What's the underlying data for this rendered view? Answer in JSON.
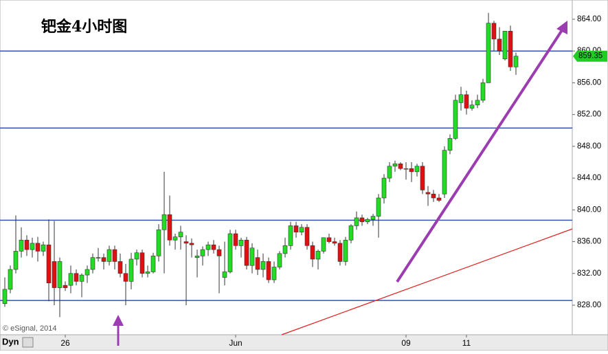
{
  "chart_data": {
    "type": "candlestick",
    "title": "钯金4小时图",
    "watermark": "© eSignal, 2014",
    "toolbar_label": "Dyn",
    "categories": [
      null,
      null,
      null,
      null,
      null,
      null,
      null,
      null,
      null,
      null,
      null,
      "26",
      null,
      null,
      null,
      null,
      null,
      null,
      null,
      null,
      null,
      null,
      null,
      null,
      null,
      null,
      null,
      null,
      null,
      null,
      null,
      null,
      null,
      null,
      null,
      null,
      null,
      null,
      null,
      null,
      null,
      null,
      "Jun",
      null,
      null,
      null,
      null,
      null,
      null,
      null,
      null,
      null,
      null,
      null,
      null,
      null,
      null,
      null,
      null,
      null,
      null,
      null,
      null,
      null,
      null,
      null,
      null,
      null,
      null,
      null,
      null,
      null,
      null,
      "09",
      null,
      null,
      null,
      null,
      null,
      null,
      null,
      null,
      null,
      null,
      "11",
      null,
      null,
      null,
      null,
      null,
      null,
      null,
      null,
      null
    ],
    "open": [
      828.2,
      830.0,
      832.5,
      834.8,
      836.2,
      835.0,
      835.8,
      834.8,
      835.6,
      833.5,
      830.2,
      830.5,
      830.5,
      832.0,
      831.0,
      831.8,
      832.5,
      834.0,
      834.0,
      833.5,
      835.0,
      833.5,
      832.0,
      831.0,
      833.8,
      834.6,
      832.0,
      832.2,
      834.2,
      837.5,
      839.4,
      836.2,
      836.6,
      836.0,
      835.8,
      834.0,
      834.2,
      835.0,
      835.6,
      835.0,
      831.5,
      832.2,
      837.0,
      835.5,
      836.2,
      833.0,
      834.0,
      832.5,
      833.5,
      831.2,
      832.8,
      834.5,
      835.5,
      838.0,
      837.2,
      837.8,
      835.5,
      833.8,
      834.8,
      836.5,
      836.0,
      835.8,
      833.5,
      836.2,
      838.0,
      839.0,
      838.5,
      838.8,
      839.2,
      841.5,
      844.0,
      845.5,
      845.8,
      845.2,
      845.2,
      844.8,
      845.5,
      842.2,
      842.0,
      841.5,
      842.0,
      847.5,
      849.0,
      853.5,
      854.5,
      852.8,
      853.2,
      853.8,
      856.0,
      863.5,
      861.5,
      859.0,
      862.5,
      858.0
    ],
    "high": [
      831.5,
      833.0,
      839.3,
      837.8,
      836.8,
      836.5,
      836.6,
      836.0,
      838.8,
      838.6,
      834.0,
      831.0,
      833.0,
      832.5,
      832.0,
      833.0,
      834.5,
      835.2,
      834.5,
      835.5,
      835.5,
      834.5,
      833.2,
      834.6,
      835.0,
      835.0,
      833.0,
      834.6,
      838.2,
      844.8,
      841.8,
      837.0,
      838.0,
      836.8,
      836.4,
      835.0,
      835.4,
      836.0,
      836.2,
      835.5,
      836.0,
      837.5,
      837.5,
      836.5,
      836.6,
      835.8,
      835.0,
      834.5,
      834.0,
      833.5,
      834.8,
      836.5,
      838.5,
      838.5,
      838.2,
      838.2,
      836.0,
      835.0,
      836.5,
      837.0,
      836.5,
      836.2,
      836.6,
      838.2,
      839.8,
      839.4,
      839.0,
      839.5,
      842.0,
      844.5,
      846.0,
      846.2,
      846.0,
      846.0,
      846.0,
      845.8,
      846.0,
      843.0,
      842.5,
      842.0,
      848.0,
      849.5,
      854.5,
      855.5,
      855.0,
      853.8,
      854.5,
      856.5,
      864.8,
      863.8,
      863.0,
      862.5,
      863.2,
      859.8
    ],
    "low": [
      827.8,
      829.5,
      832.0,
      834.0,
      834.2,
      834.0,
      833.5,
      834.2,
      828.5,
      828.0,
      826.5,
      829.8,
      829.5,
      830.5,
      829.0,
      830.8,
      832.0,
      833.5,
      832.5,
      833.0,
      832.5,
      831.5,
      828.0,
      830.0,
      833.0,
      831.5,
      831.5,
      832.0,
      833.5,
      832.0,
      835.5,
      835.0,
      835.0,
      828.0,
      834.0,
      831.5,
      833.0,
      834.2,
      834.5,
      829.5,
      830.5,
      832.0,
      835.0,
      834.0,
      832.5,
      832.0,
      831.8,
      831.5,
      830.8,
      830.8,
      832.5,
      834.0,
      835.0,
      836.5,
      836.8,
      835.0,
      832.8,
      832.5,
      834.5,
      835.8,
      835.5,
      833.0,
      833.0,
      835.8,
      837.5,
      838.0,
      838.2,
      838.0,
      836.5,
      840.8,
      843.5,
      844.8,
      845.0,
      843.8,
      843.5,
      844.2,
      842.0,
      840.5,
      841.0,
      841.0,
      841.5,
      847.0,
      848.8,
      852.5,
      852.0,
      852.5,
      852.8,
      853.5,
      856.0,
      860.0,
      859.5,
      858.8,
      857.5,
      857.0
    ],
    "close": [
      830.0,
      832.5,
      834.8,
      836.2,
      835.0,
      835.8,
      834.8,
      835.6,
      830.8,
      830.2,
      833.5,
      830.2,
      832.0,
      831.0,
      831.8,
      832.5,
      834.0,
      834.0,
      833.5,
      835.0,
      833.5,
      832.0,
      831.0,
      833.8,
      834.6,
      832.0,
      832.2,
      834.2,
      837.5,
      839.4,
      836.2,
      836.6,
      837.2,
      835.8,
      835.6,
      834.2,
      835.0,
      835.6,
      835.0,
      834.2,
      832.2,
      837.0,
      835.5,
      836.2,
      833.0,
      835.2,
      832.5,
      833.5,
      831.2,
      832.8,
      834.5,
      835.5,
      838.0,
      837.2,
      837.8,
      835.5,
      833.8,
      834.8,
      836.5,
      836.0,
      835.8,
      833.5,
      836.2,
      838.0,
      839.0,
      838.5,
      838.8,
      839.2,
      841.5,
      844.0,
      845.5,
      845.8,
      845.2,
      845.2,
      844.8,
      845.5,
      842.5,
      842.0,
      841.5,
      841.2,
      847.5,
      849.0,
      853.8,
      854.5,
      852.8,
      853.2,
      853.8,
      856.0,
      863.5,
      861.5,
      860.0,
      862.5,
      858.0,
      859.35
    ],
    "up_color": "#22dd22",
    "down_color": "#dd1111",
    "hlines": [
      860.0,
      850.3,
      838.7,
      828.6
    ],
    "hline_color": "#3355bb",
    "ylim": [
      824.28,
      866.42
    ],
    "yticks": [
      {
        "value": 828,
        "label": "828.00"
      },
      {
        "value": 832,
        "label": "832.00"
      },
      {
        "value": 836,
        "label": "836.00"
      },
      {
        "value": 840,
        "label": "840.00"
      },
      {
        "value": 844,
        "label": "844.00"
      },
      {
        "value": 848,
        "label": "848.00"
      },
      {
        "value": 852,
        "label": "852.00"
      },
      {
        "value": 856,
        "label": "856.00"
      },
      {
        "value": 860,
        "label": "860.00"
      },
      {
        "value": 864,
        "label": "864.00"
      }
    ]
  }
}
